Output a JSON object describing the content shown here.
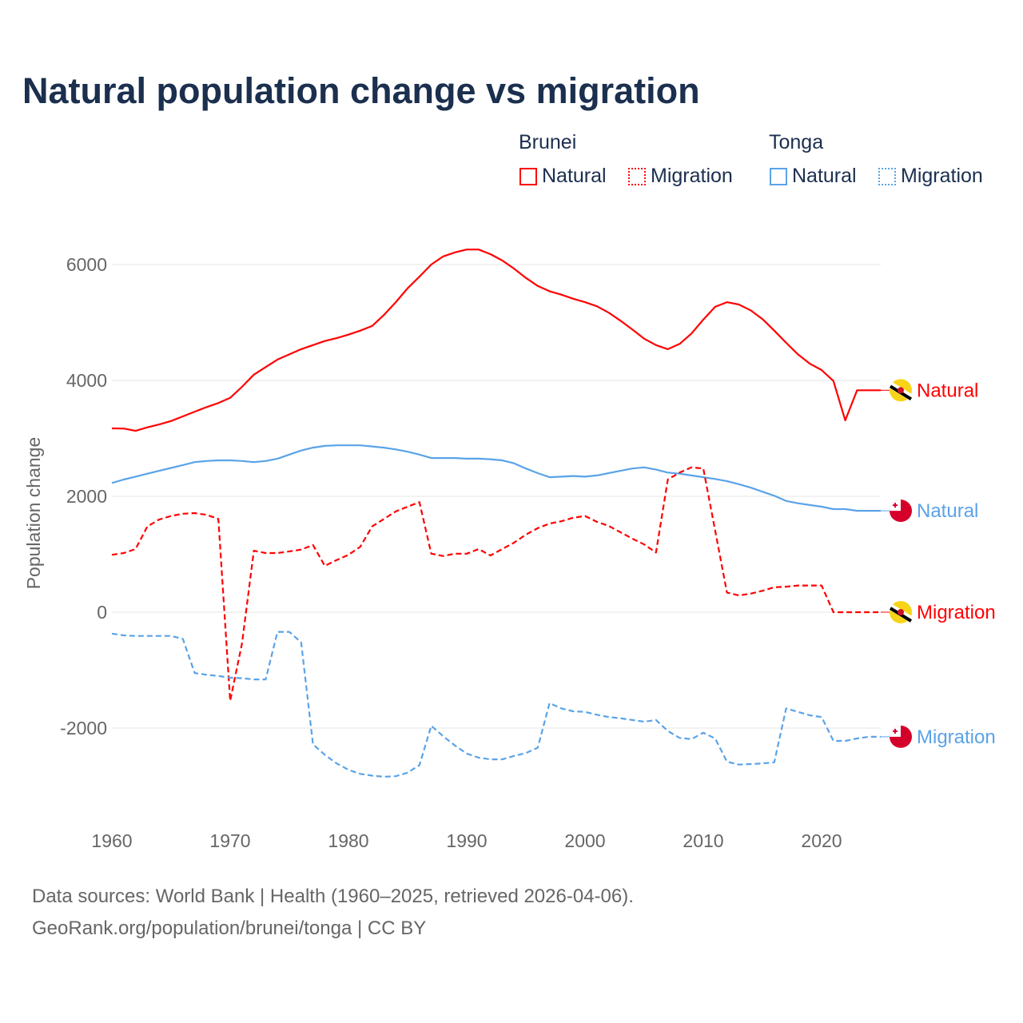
{
  "chart_data": {
    "type": "line",
    "title": "Natural population change vs migration",
    "xlabel": "",
    "ylabel": "Population change",
    "xlim": [
      1960,
      2025
    ],
    "ylim": [
      -3000,
      6500
    ],
    "yticks": [
      6000,
      4000,
      2000,
      0,
      -2000
    ],
    "xticks": [
      1960,
      1970,
      1980,
      1990,
      2000,
      2010,
      2020
    ],
    "grid": true,
    "legend": {
      "placement": "top-right",
      "groups": [
        {
          "label": "Brunei",
          "items": [
            "Natural",
            "Migration"
          ]
        },
        {
          "label": "Tonga",
          "items": [
            "Natural",
            "Migration"
          ]
        }
      ]
    },
    "x": [
      1960,
      1961,
      1962,
      1963,
      1964,
      1965,
      1966,
      1967,
      1968,
      1969,
      1970,
      1971,
      1972,
      1973,
      1974,
      1975,
      1976,
      1977,
      1978,
      1979,
      1980,
      1981,
      1982,
      1983,
      1984,
      1985,
      1986,
      1987,
      1988,
      1989,
      1990,
      1991,
      1992,
      1993,
      1994,
      1995,
      1996,
      1997,
      1998,
      1999,
      2000,
      2001,
      2002,
      2003,
      2004,
      2005,
      2006,
      2007,
      2008,
      2009,
      2010,
      2011,
      2012,
      2013,
      2014,
      2015,
      2016,
      2017,
      2018,
      2019,
      2020,
      2021,
      2022,
      2023,
      2024,
      2025
    ],
    "series": [
      {
        "name": "Brunei Natural",
        "country": "Brunei",
        "kind": "Natural",
        "color": "#ff0000",
        "dash": false,
        "end_label": "Natural",
        "values": [
          3172,
          3170,
          3130,
          3190,
          3240,
          3300,
          3380,
          3460,
          3540,
          3610,
          3700,
          3890,
          4100,
          4230,
          4360,
          4450,
          4540,
          4610,
          4680,
          4730,
          4790,
          4860,
          4940,
          5130,
          5350,
          5590,
          5790,
          6000,
          6140,
          6210,
          6260,
          6260,
          6180,
          6070,
          5930,
          5770,
          5630,
          5540,
          5480,
          5410,
          5350,
          5280,
          5170,
          5030,
          4880,
          4720,
          4610,
          4540,
          4630,
          4810,
          5050,
          5270,
          5350,
          5310,
          5210,
          5060,
          4860,
          4650,
          4450,
          4290,
          4180,
          3990,
          3310,
          3830,
          3830,
          3830
        ]
      },
      {
        "name": "Tonga Natural",
        "country": "Tonga",
        "kind": "Natural",
        "color": "#5aa3e8",
        "dash": false,
        "end_label": "Natural",
        "values": [
          2230,
          2290,
          2340,
          2390,
          2440,
          2490,
          2540,
          2590,
          2610,
          2620,
          2620,
          2610,
          2590,
          2610,
          2650,
          2720,
          2790,
          2840,
          2870,
          2880,
          2880,
          2880,
          2860,
          2840,
          2810,
          2770,
          2720,
          2660,
          2660,
          2660,
          2650,
          2650,
          2640,
          2620,
          2570,
          2480,
          2400,
          2330,
          2340,
          2350,
          2340,
          2360,
          2400,
          2440,
          2480,
          2500,
          2460,
          2410,
          2390,
          2360,
          2330,
          2300,
          2260,
          2210,
          2150,
          2080,
          2010,
          1920,
          1880,
          1850,
          1820,
          1780,
          1780,
          1750,
          1750,
          1750
        ]
      },
      {
        "name": "Brunei Migration",
        "country": "Brunei",
        "kind": "Migration",
        "color": "#ff0000",
        "dash": true,
        "end_label": "Migration",
        "values": [
          990,
          1020,
          1090,
          1480,
          1600,
          1660,
          1700,
          1710,
          1680,
          1610,
          -1530,
          -540,
          1060,
          1020,
          1020,
          1050,
          1080,
          1160,
          800,
          900,
          990,
          1130,
          1480,
          1610,
          1740,
          1820,
          1900,
          1010,
          970,
          1010,
          1010,
          1090,
          980,
          1090,
          1200,
          1340,
          1450,
          1530,
          1570,
          1630,
          1660,
          1560,
          1490,
          1380,
          1270,
          1170,
          1030,
          2290,
          2410,
          2500,
          2480,
          1410,
          340,
          290,
          320,
          370,
          430,
          440,
          460,
          460,
          460,
          0,
          0,
          0,
          0,
          0
        ]
      },
      {
        "name": "Tonga Migration",
        "country": "Tonga",
        "kind": "Migration",
        "color": "#5aa3e8",
        "dash": true,
        "end_label": "Migration",
        "values": [
          -370,
          -400,
          -410,
          -410,
          -410,
          -410,
          -460,
          -1050,
          -1080,
          -1100,
          -1130,
          -1140,
          -1160,
          -1160,
          -340,
          -340,
          -520,
          -2280,
          -2460,
          -2610,
          -2720,
          -2790,
          -2820,
          -2840,
          -2830,
          -2770,
          -2640,
          -1960,
          -2140,
          -2300,
          -2440,
          -2510,
          -2540,
          -2540,
          -2480,
          -2430,
          -2340,
          -1570,
          -1660,
          -1710,
          -1720,
          -1770,
          -1810,
          -1830,
          -1860,
          -1890,
          -1860,
          -2050,
          -2170,
          -2190,
          -2080,
          -2180,
          -2580,
          -2630,
          -2620,
          -2610,
          -2590,
          -1660,
          -1720,
          -1780,
          -1810,
          -2220,
          -2220,
          -2180,
          -2150,
          -2150
        ]
      }
    ]
  },
  "legend": {
    "brunei": "Brunei",
    "tonga": "Tonga",
    "natural": "Natural",
    "migration": "Migration"
  },
  "footer": {
    "sources": "Data sources: World Bank | Health (1960–2025, retrieved 2026-04-06).",
    "credit": "GeoRank.org/population/brunei/tonga | CC BY"
  }
}
